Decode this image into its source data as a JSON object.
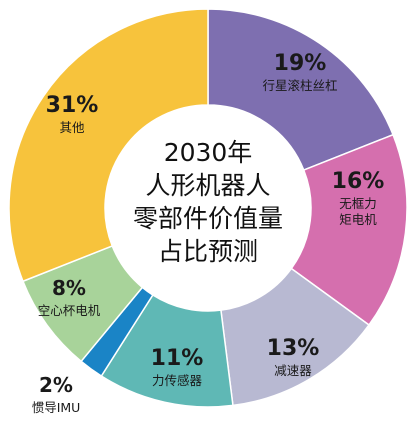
{
  "chart_data": {
    "type": "pie",
    "style": "donut",
    "title_lines": [
      "2030年",
      "人形机器人",
      "零部件价值量",
      "占比预测"
    ],
    "slices": [
      {
        "label": "行星滚柱丝杠",
        "percent_label": "19%",
        "value": 19,
        "color": "#7E6FB0"
      },
      {
        "label": "无框力矩电机",
        "percent_label": "16%",
        "value": 16,
        "color": "#D56FAE"
      },
      {
        "label": "减速器",
        "percent_label": "13%",
        "value": 13,
        "color": "#B8B9D2"
      },
      {
        "label": "力传感器",
        "percent_label": "11%",
        "value": 11,
        "color": "#5FB8B5"
      },
      {
        "label": "惯导IMU",
        "percent_label": "2%",
        "value": 2,
        "color": "#1A84C6"
      },
      {
        "label": "空心杯电机",
        "percent_label": "8%",
        "value": 8,
        "color": "#A8D39A"
      },
      {
        "label": "其他",
        "percent_label": "31%",
        "value": 31,
        "color": "#F7C33C"
      }
    ],
    "label_lines": {
      "无框力矩电机": [
        "无框力",
        "矩电机"
      ]
    }
  }
}
